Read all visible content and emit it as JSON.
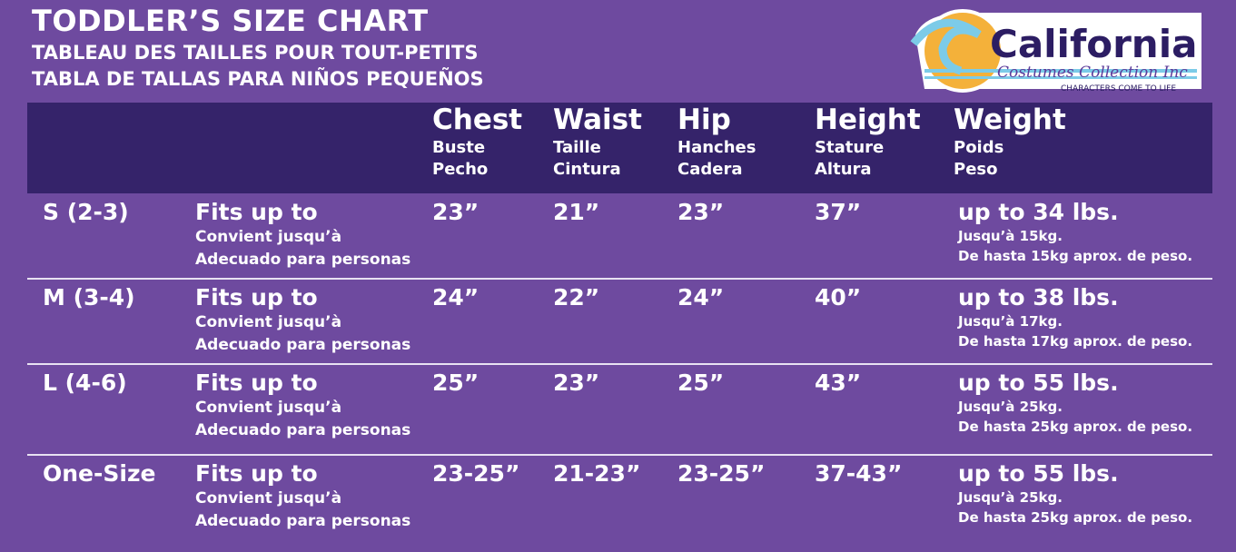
{
  "titles": [
    "TODDLER’S SIZE CHART",
    "TABLEAU DES TAILLES POUR TOUT-PETITS",
    "TABLA DE TALLAS PARA NIÑOS PEQUEÑOS"
  ],
  "logo": {
    "name": "California",
    "sub": "Costumes Collection Inc",
    "tagline": "CHARACTERS COME TO LIFE",
    "colors": {
      "sun": "#f4b13a",
      "wave": "#7ccbe8",
      "text": "#2c1d63"
    }
  },
  "colors": {
    "background": "#6e4a9f",
    "header_band": "#35236a"
  },
  "headers": [
    {
      "en": "Chest",
      "fr": "Buste",
      "es": "Pecho"
    },
    {
      "en": "Waist",
      "fr": "Taille",
      "es": "Cintura"
    },
    {
      "en": "Hip",
      "fr": "Hanches",
      "es": "Cadera"
    },
    {
      "en": "Height",
      "fr": "Stature",
      "es": "Altura"
    },
    {
      "en": "Weight",
      "fr": "Poids",
      "es": "Peso"
    }
  ],
  "fits": {
    "en": "Fits up to",
    "fr": "Convient jusqu’à",
    "es": "Adecuado para personas"
  },
  "rows": [
    {
      "size": "S (2-3)",
      "chest": "23”",
      "waist": "21”",
      "hip": "23”",
      "height": "37”",
      "weight": "up to 34 lbs.",
      "weight_fr": "Jusqu’à 15kg.",
      "weight_es": "De hasta 15kg aprox. de peso."
    },
    {
      "size": "M (3-4)",
      "chest": "24”",
      "waist": "22”",
      "hip": "24”",
      "height": "40”",
      "weight": "up to 38 lbs.",
      "weight_fr": "Jusqu’à 17kg.",
      "weight_es": "De hasta 17kg aprox. de peso."
    },
    {
      "size": "L (4-6)",
      "chest": "25”",
      "waist": "23”",
      "hip": "25”",
      "height": "43”",
      "weight": "up to 55 lbs.",
      "weight_fr": "Jusqu’à 25kg.",
      "weight_es": "De hasta 25kg aprox. de peso."
    },
    {
      "size": "One-Size",
      "chest": "23-25”",
      "waist": "21-23”",
      "hip": "23-25”",
      "height": "37-43”",
      "weight": "up to 55 lbs.",
      "weight_fr": "Jusqu’à 25kg.",
      "weight_es": "De hasta 25kg aprox. de peso."
    }
  ]
}
